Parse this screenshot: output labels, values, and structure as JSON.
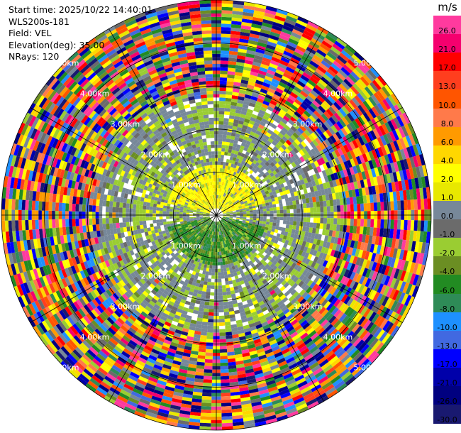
{
  "info": {
    "start_time": "Start time: 2025/10/22 14:40:01",
    "instrument": "WLS200s-181",
    "field": "Field: VEL",
    "elevation": "Elevation(deg): 35.00",
    "nrays": "NRays: 120"
  },
  "colorbar": {
    "unit": "m/s",
    "levels": [
      {
        "label": "26.0",
        "color": "#ff3a9e"
      },
      {
        "label": "21.0",
        "color": "#f5006e"
      },
      {
        "label": "17.0",
        "color": "#ff0000"
      },
      {
        "label": "13.0",
        "color": "#ff3e1e"
      },
      {
        "label": "10.0",
        "color": "#ff5500"
      },
      {
        "label": "8.0",
        "color": "#ff7a4a"
      },
      {
        "label": "6.0",
        "color": "#ff9a00"
      },
      {
        "label": "4.0",
        "color": "#ffd700"
      },
      {
        "label": "2.0",
        "color": "#ffff00"
      },
      {
        "label": "1.0",
        "color": "#e8e800"
      },
      {
        "label": "0.0",
        "color": "#778899"
      },
      {
        "label": "-1.0",
        "color": "#6b6b6b"
      },
      {
        "label": "-2.0",
        "color": "#9acd32"
      },
      {
        "label": "-4.0",
        "color": "#6b8e23"
      },
      {
        "label": "-6.0",
        "color": "#228b22"
      },
      {
        "label": "-8.0",
        "color": "#2e8b57"
      },
      {
        "label": "-10.0",
        "color": "#1e90ff"
      },
      {
        "label": "-13.0",
        "color": "#4169e1"
      },
      {
        "label": "-17.0",
        "color": "#0000ff"
      },
      {
        "label": "-21.0",
        "color": "#0000aa"
      },
      {
        "label": "-26.0",
        "color": "#000080"
      },
      {
        "label": "-30.0",
        "color": "#191970"
      }
    ]
  },
  "chart_data": {
    "type": "heatmap",
    "projection": "polar PPI",
    "field": "VEL",
    "units": "m/s",
    "elevation_deg": 35.0,
    "n_rays": 120,
    "max_range_km": 5.0,
    "range_rings_km": [
      1,
      2,
      3,
      4,
      5
    ],
    "range_ring_labels": [
      "1.00km",
      "2.00km",
      "3.00km",
      "4.00km",
      "5.00km"
    ],
    "grid_bearings_deg": [
      0,
      30,
      60,
      90,
      120,
      150,
      180,
      210,
      240,
      270,
      300,
      330
    ],
    "pattern": {
      "inner_north_lobe": {
        "range_km": [
          0.2,
          1.2
        ],
        "bearing_deg": [
          -75,
          75
        ],
        "value_ms": 2.0
      },
      "inner_south_lobe": {
        "range_km": [
          0.2,
          1.2
        ],
        "bearing_deg": [
          105,
          255
        ],
        "value_ms": -6.0
      },
      "ring_zone": {
        "range_km": [
          1.0,
          2.7
        ],
        "dominant_values_ms": [
          0.0,
          -2.0,
          2.0
        ]
      },
      "noise_zone": {
        "range_km": [
          2.7,
          5.0
        ],
        "note": "random values across full scale"
      }
    }
  }
}
